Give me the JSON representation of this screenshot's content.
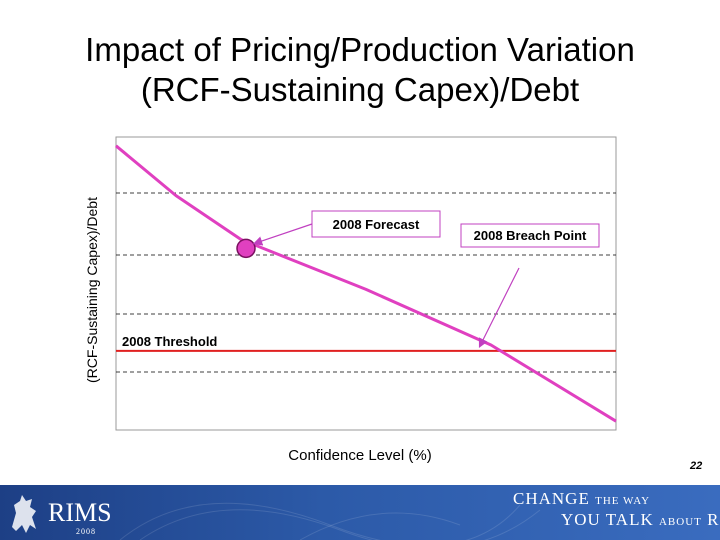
{
  "slide": {
    "title_line1": "Impact of Pricing/Production Variation",
    "title_line2": "(RCF-Sustaining Capex)/Debt",
    "page_number": "22"
  },
  "chart_data": {
    "type": "line",
    "ylabel": "(RCF-Sustaining Capex)/Debt",
    "xlabel": "Confidence Level (%)",
    "grid": "horizontal dashed",
    "series": [
      {
        "values_relative": [
          [
            0.0,
            0.97
          ],
          [
            0.12,
            0.8
          ],
          [
            0.25,
            0.65
          ],
          [
            0.5,
            0.48
          ],
          [
            0.75,
            0.29
          ],
          [
            1.0,
            0.03
          ]
        ]
      }
    ],
    "threshold": {
      "label": "2008 Threshold",
      "level_relative": 0.27,
      "color": "#e02020"
    },
    "annotations": [
      {
        "label": "2008 Forecast",
        "x_relative": 0.26,
        "y_relative": 0.62
      },
      {
        "label": "2008 Breach Point",
        "x_relative": 0.72,
        "y_relative": 0.27
      }
    ],
    "colors": {
      "curve": "#e040c0",
      "marker": "#e040c0",
      "threshold": "#e02020",
      "arrow": "#c040c0"
    }
  },
  "footer": {
    "logo_text": "RIMS",
    "logo_year": "2008",
    "tagline_1a": "CHANGE",
    "tagline_1b": "THE WAY",
    "tagline_2a": "YOU TALK",
    "tagline_2b": "ABOUT",
    "tagline_2c": "RISK",
    "background_color": "#2c5aa8"
  }
}
